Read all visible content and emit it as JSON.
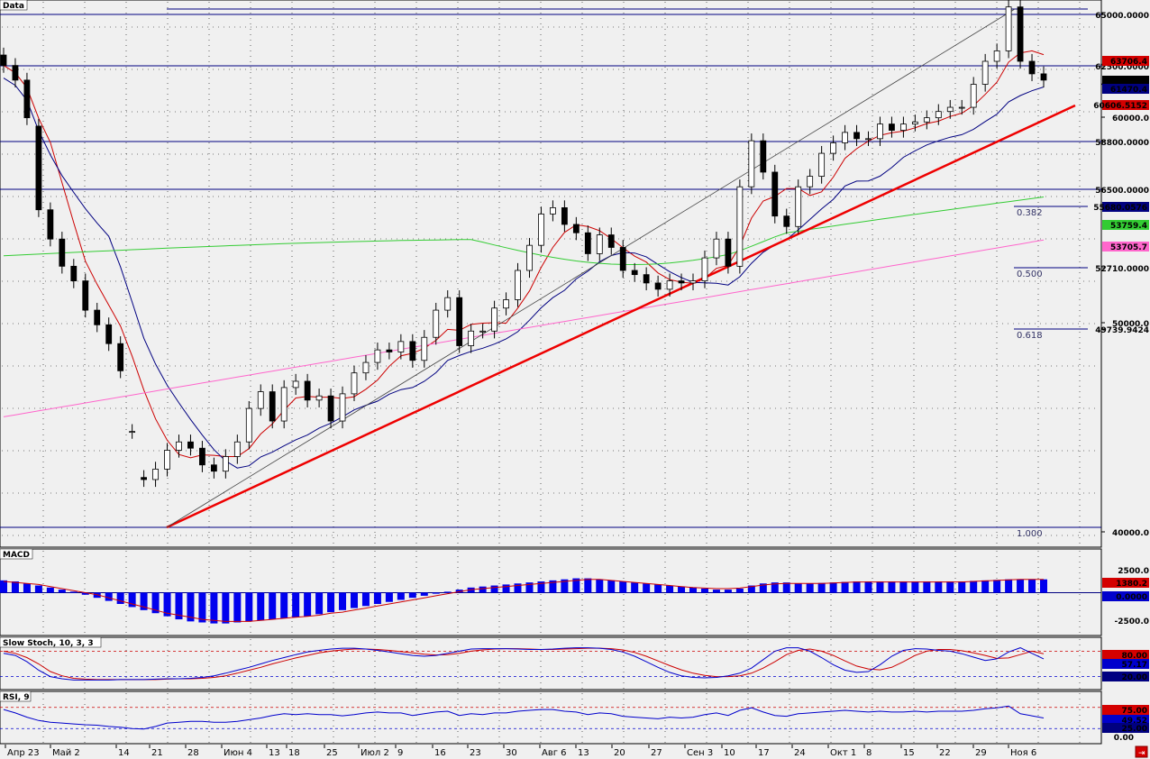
{
  "chart_data": [
    {
      "type": "candlestick",
      "title": "Data",
      "y_axis_labels": [
        "65000.0000",
        "62500.0000",
        "60000.0",
        "58800.0000",
        "56500.0000",
        "52710.0000",
        "50000.0",
        "49739.9424",
        "40000.0"
      ],
      "value_boxes": [
        {
          "text": "63706.4",
          "color": "#d40000",
          "text_color": "#000"
        },
        {
          "text": "▲ 61790.0",
          "color": "#000000",
          "text_color": "#ffffff"
        },
        {
          "text": "61470.4",
          "color": "#000080",
          "text_color": "#ffffff"
        },
        {
          "text": "60606.5152",
          "color": "#d40000",
          "text_color": "#ffffff"
        },
        {
          "text": "55680.0576",
          "color": "#000080",
          "text_color": "#ffffff"
        },
        {
          "text": "53759.4",
          "color": "#33cc33",
          "text_color": "#000"
        },
        {
          "text": "53705.7",
          "color": "#ff66cc",
          "text_color": "#000"
        }
      ],
      "fib_labels": [
        "0.382",
        "0.500",
        "0.618",
        "1.000"
      ],
      "x_labels": [
        "Апр 23",
        "Май 2",
        "14",
        "21",
        "28",
        "Июн 4",
        "13",
        "18",
        "25",
        "Июл 2",
        "9",
        "16",
        "23",
        "30",
        "Авг 6",
        "13",
        "20",
        "27",
        "Сен 3",
        "10",
        "17",
        "24",
        "Окт 1",
        "8",
        "15",
        "22",
        "29",
        "Ноя 6"
      ],
      "price_range": [
        40000,
        65000
      ],
      "close": [
        62300,
        61600,
        59800,
        55400,
        54000,
        52700,
        52000,
        50600,
        49900,
        49000,
        47700,
        44800,
        42500,
        43000,
        43900,
        44300,
        44000,
        43200,
        42900,
        43600,
        44300,
        45900,
        46700,
        45300,
        46900,
        47200,
        46300,
        46500,
        45300,
        46600,
        47600,
        48100,
        48700,
        48600,
        49100,
        48200,
        49300,
        50600,
        51200,
        48900,
        49600,
        49600,
        50700,
        51100,
        52500,
        53700,
        55200,
        55500,
        54700,
        54300,
        53300,
        54200,
        53600,
        52500,
        52300,
        51900,
        51600,
        52000,
        51900,
        52000,
        53100,
        54000,
        52700,
        56500,
        58700,
        57200,
        55100,
        54600,
        56500,
        57000,
        58100,
        58600,
        59100,
        58800,
        58800,
        59500,
        59200,
        59500,
        59600,
        59800,
        60100,
        60300,
        60300,
        61400,
        62500,
        63000,
        65100,
        62500,
        61900,
        61600
      ],
      "open": [
        62800,
        62300,
        61600,
        59400,
        55400,
        54000,
        52700,
        52000,
        50600,
        49900,
        49000,
        44800,
        42600,
        42500,
        43000,
        43900,
        44300,
        44000,
        43200,
        42900,
        43600,
        44300,
        45900,
        46700,
        45300,
        46900,
        47200,
        46300,
        46500,
        45300,
        46600,
        47600,
        48100,
        48700,
        48600,
        49100,
        48200,
        49300,
        50600,
        51200,
        48900,
        49600,
        49600,
        50700,
        51100,
        52500,
        53700,
        55200,
        55500,
        54700,
        54300,
        53300,
        54200,
        53600,
        52500,
        52300,
        51900,
        51600,
        52000,
        51900,
        52000,
        53100,
        54000,
        52700,
        56500,
        58700,
        57200,
        55100,
        54600,
        56500,
        57000,
        58100,
        58600,
        59100,
        58800,
        58800,
        59500,
        59200,
        59500,
        59600,
        59800,
        60100,
        60300,
        60300,
        61400,
        62500,
        63000,
        65100,
        62500,
        61900
      ]
    },
    {
      "type": "bar",
      "title": "MACD",
      "y_axis_labels": [
        "2500.0",
        "0.0000",
        "-2500.0"
      ],
      "value_boxes": [
        {
          "text": "1380.2",
          "color": "#d40000",
          "text_color": "#000"
        },
        {
          "text": "0.0000",
          "color": "#0000cc",
          "text_color": "#ffffff"
        }
      ],
      "y_range": [
        -4000,
        4000
      ],
      "values": [
        1200,
        1100,
        900,
        700,
        500,
        300,
        100,
        -200,
        -500,
        -800,
        -1100,
        -1400,
        -1700,
        -2000,
        -2300,
        -2600,
        -2800,
        -2900,
        -3000,
        -3000,
        -2900,
        -2800,
        -2700,
        -2600,
        -2500,
        -2400,
        -2300,
        -2100,
        -1900,
        -1700,
        -1500,
        -1300,
        -1100,
        -900,
        -700,
        -500,
        -300,
        -100,
        100,
        300,
        500,
        600,
        700,
        800,
        900,
        1000,
        1100,
        1200,
        1300,
        1400,
        1400,
        1300,
        1200,
        1100,
        1000,
        900,
        800,
        700,
        600,
        500,
        400,
        300,
        300,
        400,
        700,
        900,
        1000,
        1000,
        900,
        900,
        950,
        1000,
        1050,
        1100,
        1100,
        1100,
        1100,
        1100,
        1100,
        1100,
        1100,
        1100,
        1100,
        1150,
        1200,
        1250,
        1300,
        1300,
        1300,
        1300
      ],
      "signal": [
        1100,
        1000,
        900,
        800,
        600,
        400,
        200,
        0,
        -200,
        -500,
        -800,
        -1100,
        -1400,
        -1700,
        -2000,
        -2200,
        -2400,
        -2600,
        -2700,
        -2800,
        -2800,
        -2800,
        -2700,
        -2600,
        -2500,
        -2400,
        -2300,
        -2200,
        -2000,
        -1900,
        -1700,
        -1500,
        -1300,
        -1100,
        -900,
        -700,
        -500,
        -300,
        -100,
        100,
        300,
        400,
        500,
        600,
        700,
        800,
        900,
        1000,
        1100,
        1200,
        1300,
        1300,
        1200,
        1100,
        1000,
        900,
        800,
        700,
        600,
        500,
        450,
        400,
        400,
        450,
        600,
        750,
        850,
        900,
        900,
        900,
        900,
        950,
        1000,
        1050,
        1050,
        1050,
        1050,
        1050,
        1050,
        1050,
        1050,
        1050,
        1050,
        1100,
        1150,
        1200,
        1250,
        1300,
        1300,
        1300
      ]
    },
    {
      "type": "line",
      "title": "Slow Stoch, 10, 3, 3",
      "y_axis_labels": [
        "80.00",
        "57.17",
        "20.00"
      ],
      "value_boxes": [
        {
          "text": "80.00",
          "color": "#d40000",
          "text_color": "#000"
        },
        {
          "text": "57.17",
          "color": "#0000cc",
          "text_color": "#ffffff"
        },
        {
          "text": "20.00",
          "color": "#000080",
          "text_color": "#ffffff"
        }
      ],
      "y_range": [
        0,
        100
      ],
      "k": [
        75,
        70,
        55,
        35,
        20,
        15,
        12,
        12,
        12,
        12,
        13,
        13,
        13,
        14,
        15,
        15,
        16,
        18,
        22,
        28,
        35,
        42,
        50,
        58,
        65,
        72,
        78,
        82,
        85,
        87,
        87,
        85,
        82,
        78,
        74,
        70,
        68,
        70,
        75,
        80,
        85,
        86,
        86,
        86,
        85,
        84,
        84,
        85,
        87,
        88,
        88,
        87,
        84,
        78,
        68,
        55,
        42,
        30,
        22,
        18,
        17,
        18,
        22,
        28,
        40,
        60,
        80,
        88,
        88,
        80,
        65,
        48,
        35,
        30,
        32,
        48,
        68,
        82,
        86,
        85,
        82,
        80,
        74,
        66,
        58,
        62,
        78,
        88,
        75,
        62
      ],
      "d": [
        80,
        75,
        65,
        50,
        32,
        22,
        16,
        14,
        13,
        13,
        13,
        13,
        13,
        13,
        14,
        15,
        15,
        16,
        18,
        22,
        28,
        35,
        42,
        50,
        57,
        64,
        70,
        76,
        80,
        83,
        85,
        85,
        84,
        82,
        79,
        76,
        73,
        71,
        72,
        75,
        80,
        83,
        85,
        86,
        86,
        85,
        84,
        84,
        85,
        86,
        87,
        87,
        86,
        83,
        77,
        68,
        57,
        46,
        36,
        28,
        23,
        20,
        20,
        22,
        28,
        40,
        55,
        72,
        82,
        85,
        80,
        70,
        57,
        45,
        38,
        36,
        42,
        55,
        70,
        80,
        84,
        84,
        81,
        76,
        70,
        63,
        64,
        72,
        80,
        74
      ]
    },
    {
      "type": "line",
      "title": "RSI, 9",
      "y_axis_labels": [
        "75.00",
        "49.52",
        "25.00",
        "0.00"
      ],
      "value_boxes": [
        {
          "text": "75.00",
          "color": "#d40000",
          "text_color": "#000"
        },
        {
          "text": "49.52",
          "color": "#0000cc",
          "text_color": "#ffffff"
        },
        {
          "text": "25.00",
          "color": "#000080",
          "text_color": "#ffffff"
        }
      ],
      "y_range": [
        0,
        100
      ],
      "values": [
        70,
        62,
        52,
        44,
        40,
        38,
        36,
        34,
        33,
        30,
        28,
        25,
        24,
        30,
        38,
        40,
        42,
        42,
        40,
        40,
        42,
        46,
        50,
        56,
        60,
        58,
        60,
        58,
        58,
        55,
        58,
        62,
        64,
        62,
        62,
        56,
        60,
        64,
        66,
        56,
        60,
        58,
        62,
        62,
        66,
        68,
        70,
        70,
        66,
        64,
        58,
        62,
        60,
        54,
        52,
        50,
        48,
        52,
        50,
        52,
        58,
        62,
        56,
        68,
        74,
        64,
        56,
        54,
        60,
        62,
        64,
        66,
        68,
        66,
        64,
        66,
        64,
        64,
        66,
        64,
        66,
        66,
        66,
        68,
        72,
        74,
        78,
        60,
        55,
        50
      ]
    }
  ]
}
